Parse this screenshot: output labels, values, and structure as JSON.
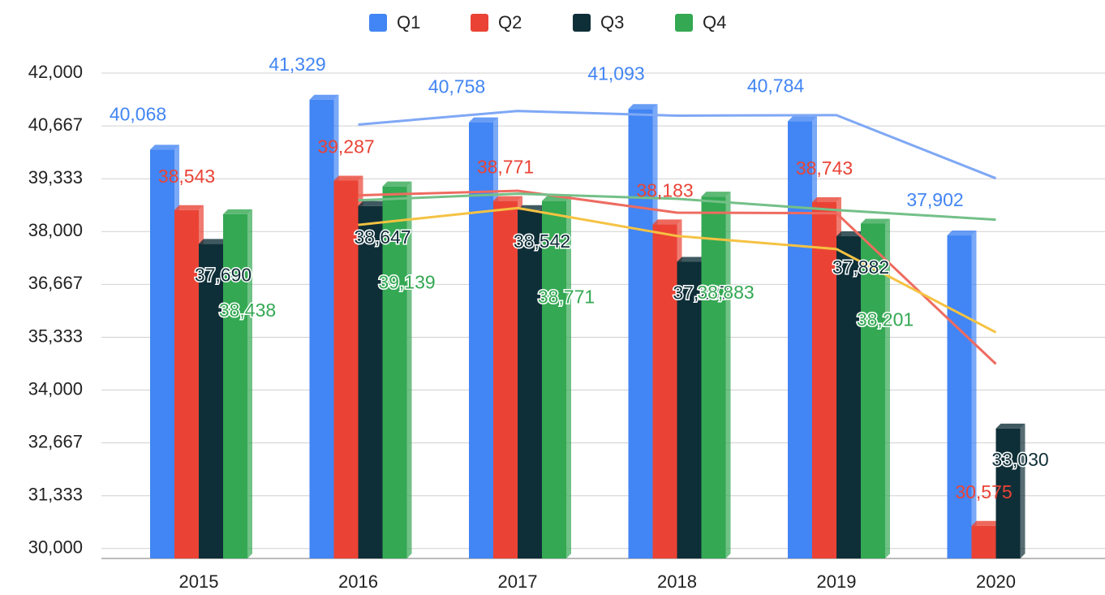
{
  "chart_data": {
    "type": "bar",
    "categories": [
      "2015",
      "2016",
      "2017",
      "2018",
      "2019",
      "2020"
    ],
    "series": [
      {
        "name": "Q1",
        "color": "#4285f4",
        "values": [
          40068,
          41329,
          40758,
          41093,
          40784,
          37902
        ],
        "value_labels": [
          "40,068",
          "41,329",
          "40,758",
          "41,093",
          "40,784",
          "37,902"
        ]
      },
      {
        "name": "Q2",
        "color": "#ea4335",
        "values": [
          38543,
          39287,
          38771,
          38183,
          38743,
          30575
        ],
        "value_labels": [
          "38,543",
          "39,287",
          "38,771",
          "38,183",
          "38,743",
          "30,575"
        ]
      },
      {
        "name": "Q3",
        "color": "#0f2f38",
        "values": [
          37690,
          38647,
          38542,
          37237,
          37882,
          33030
        ],
        "value_labels": [
          "37,690",
          "38,647",
          "38,542",
          "37,237",
          "37,882",
          "33,030"
        ]
      },
      {
        "name": "Q4",
        "color": "#34a853",
        "values": [
          38438,
          39139,
          38771,
          38883,
          38201,
          null
        ],
        "value_labels": [
          "38,438",
          "39,139",
          "38,771",
          "38,883",
          "38,201",
          null
        ]
      }
    ],
    "lines": [
      {
        "color": "#7fa8f5",
        "values": [
          null,
          40700,
          41043,
          40925,
          40938,
          39343
        ]
      },
      {
        "color": "#ee6b60",
        "values": [
          null,
          38915,
          39029,
          38477,
          38463,
          34659
        ]
      },
      {
        "color": "#f5c242",
        "values": [
          null,
          38168,
          38594,
          37889,
          37559,
          35456
        ]
      },
      {
        "color": "#74c088",
        "values": [
          null,
          38788,
          38955,
          38827,
          38542,
          38300
        ]
      }
    ],
    "ylim": [
      29750,
      42000
    ],
    "yticks": [
      {
        "value": 30000,
        "label": "30,000"
      },
      {
        "value": 31333,
        "label": "31,333"
      },
      {
        "value": 32667,
        "label": "32,667"
      },
      {
        "value": 34000,
        "label": "34,000"
      },
      {
        "value": 35333,
        "label": "35,333"
      },
      {
        "value": 36667,
        "label": "36,667"
      },
      {
        "value": 38000,
        "label": "38,000"
      },
      {
        "value": 39333,
        "label": "39,333"
      },
      {
        "value": 40667,
        "label": "40,667"
      },
      {
        "value": 42000,
        "label": "42,000"
      }
    ],
    "grid": true,
    "legend": "top"
  }
}
